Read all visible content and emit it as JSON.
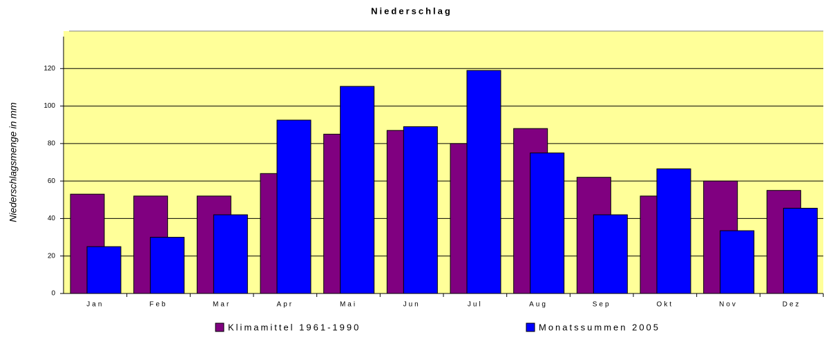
{
  "chart_data": {
    "type": "bar",
    "title": "Niederschlag",
    "y_label": "Niederschlagsmenge in mm",
    "categories": [
      "Jan",
      "Feb",
      "Mar",
      "Apr",
      "Mai",
      "Jun",
      "Jul",
      "Aug",
      "Sep",
      "Okt",
      "Nov",
      "Dez"
    ],
    "series": [
      {
        "name": "Klimamittel 1961-1990",
        "color": "#800080",
        "values": [
          53,
          52,
          52,
          64,
          85,
          87,
          80,
          88,
          62,
          52,
          60,
          55
        ]
      },
      {
        "name": "Monatssummen 2005",
        "color": "#0000ff",
        "values": [
          25,
          30,
          42,
          92.5,
          110.5,
          89,
          119,
          75,
          42,
          66.5,
          33.5,
          45.5
        ]
      }
    ],
    "ylim": [
      0,
      140
    ],
    "yticks": [
      0,
      20,
      40,
      60,
      80,
      100,
      120
    ],
    "grid": true,
    "background": "#ffff99"
  }
}
